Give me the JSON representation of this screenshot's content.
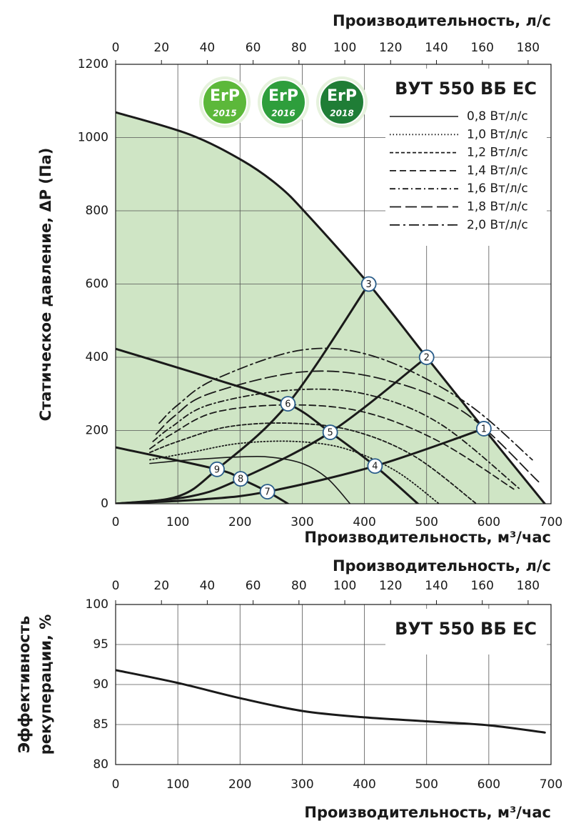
{
  "chart_data": [
    {
      "type": "line",
      "title": "ВУТ 550 ВБ ЕС",
      "xlabel": "Производительность, м³/час",
      "x2label": "Производительность, л/с",
      "ylabel": [
        "Статическое давление, ΔP (Па)"
      ],
      "xlim": [
        0,
        700
      ],
      "xticks": [
        0,
        100,
        200,
        300,
        400,
        500,
        600,
        700
      ],
      "x2lim": [
        0,
        190
      ],
      "x2ticks": [
        0,
        20,
        40,
        60,
        80,
        100,
        120,
        140,
        160,
        180
      ],
      "ylim": [
        0,
        1200
      ],
      "yticks": [
        0,
        200,
        400,
        600,
        800,
        1000,
        1200
      ],
      "grid": true,
      "badges": [
        {
          "label": "ErP",
          "year": "2015",
          "color": "#5cb83a"
        },
        {
          "label": "ErP",
          "year": "2016",
          "color": "#2e9e3c"
        },
        {
          "label": "ErP",
          "year": "2018",
          "color": "#1f7d36"
        }
      ],
      "series": [
        {
          "color": "#1a1a1a",
          "width": 3,
          "fill": "#cfe5c5",
          "x": [
            0,
            118,
            204,
            262,
            308,
            407,
            500,
            592,
            690
          ],
          "values": [
            1069,
            1009,
            937,
            868,
            790,
            600,
            400,
            205,
            0
          ]
        },
        {
          "color": "#1a1a1a",
          "width": 3,
          "x": [
            0,
            158,
            277,
            345,
            417,
            486
          ],
          "values": [
            423,
            341,
            273,
            195,
            103,
            0
          ]
        },
        {
          "color": "#1a1a1a",
          "width": 3,
          "x": [
            0,
            163,
            201,
            244,
            277
          ],
          "values": [
            154,
            94,
            68,
            33,
            0
          ]
        },
        {
          "color": "#1a1a1a",
          "width": 3,
          "x": [
            0,
            100,
            163,
            277,
            407
          ],
          "values": [
            0,
            20,
            94,
            273,
            600
          ]
        },
        {
          "color": "#1a1a1a",
          "width": 3,
          "x": [
            0,
            120,
            201,
            345,
            500
          ],
          "values": [
            0,
            20,
            68,
            195,
            400
          ]
        },
        {
          "color": "#1a1a1a",
          "width": 3,
          "x": [
            0,
            140,
            244,
            417,
            592
          ],
          "values": [
            0,
            12,
            33,
            103,
            205
          ]
        },
        {
          "name": "0,8 Вт/л/с",
          "color": "#1a1a1a",
          "width": 1.6,
          "dash": "none",
          "x": [
            55,
            120,
            200,
            250,
            300,
            340,
            377
          ],
          "values": [
            110,
            120,
            128,
            127,
            110,
            70,
            0
          ]
        },
        {
          "name": "1,0 Вт/л/с",
          "color": "#1a1a1a",
          "width": 1.8,
          "dash": "1.5,3",
          "x": [
            55,
            120,
            200,
            290,
            370,
            450,
            520
          ],
          "values": [
            120,
            140,
            165,
            170,
            150,
            90,
            0
          ]
        },
        {
          "name": "1,2 Вт/л/с",
          "color": "#1a1a1a",
          "width": 1.8,
          "dash": "5,3",
          "x": [
            55,
            100,
            180,
            280,
            380,
            480,
            580
          ],
          "values": [
            140,
            170,
            210,
            220,
            200,
            130,
            0
          ]
        },
        {
          "name": "1,4 Вт/л/с",
          "color": "#1a1a1a",
          "width": 1.8,
          "dash": "9,5",
          "x": [
            55,
            90,
            160,
            280,
            400,
            520,
            640
          ],
          "values": [
            150,
            190,
            250,
            270,
            250,
            170,
            40
          ]
        },
        {
          "name": "1,6 Вт/л/с",
          "color": "#1a1a1a",
          "width": 1.8,
          "dash": "8,4,2,4",
          "x": [
            60,
            90,
            150,
            280,
            400,
            520,
            650
          ],
          "values": [
            170,
            210,
            270,
            310,
            300,
            220,
            40
          ]
        },
        {
          "name": "1,8 Вт/л/с",
          "color": "#1a1a1a",
          "width": 1.8,
          "dash": "16,6",
          "x": [
            65,
            95,
            150,
            300,
            430,
            560,
            680
          ],
          "values": [
            190,
            240,
            300,
            360,
            340,
            250,
            60
          ]
        },
        {
          "name": "2,0 Вт/л/с",
          "color": "#1a1a1a",
          "width": 1.8,
          "dash": "14,5,3,5",
          "x": [
            70,
            100,
            160,
            300,
            420,
            560,
            670
          ],
          "values": [
            220,
            270,
            340,
            420,
            400,
            280,
            120
          ]
        }
      ],
      "points": [
        {
          "label": "1",
          "x": 592,
          "y": 205
        },
        {
          "label": "2",
          "x": 500,
          "y": 400
        },
        {
          "label": "3",
          "x": 407,
          "y": 600
        },
        {
          "label": "4",
          "x": 417,
          "y": 103
        },
        {
          "label": "5",
          "x": 345,
          "y": 195
        },
        {
          "label": "6",
          "x": 277,
          "y": 273
        },
        {
          "label": "7",
          "x": 244,
          "y": 33
        },
        {
          "label": "8",
          "x": 201,
          "y": 68
        },
        {
          "label": "9",
          "x": 163,
          "y": 94
        }
      ]
    },
    {
      "type": "line",
      "title": "ВУТ 550 ВБ ЕС",
      "xlabel": "Производительность, м³/час",
      "x2label": "Производительность, л/с",
      "ylabel": [
        "Эффективность",
        "рекуперации, %"
      ],
      "xlim": [
        0,
        700
      ],
      "xticks": [
        0,
        100,
        200,
        300,
        400,
        500,
        600,
        700
      ],
      "x2lim": [
        0,
        190
      ],
      "x2ticks": [
        0,
        20,
        40,
        60,
        80,
        100,
        120,
        140,
        160,
        180
      ],
      "ylim": [
        80,
        100
      ],
      "yticks": [
        80,
        85,
        90,
        95,
        100
      ],
      "grid": true,
      "series": [
        {
          "color": "#1a1a1a",
          "width": 3,
          "x": [
            0,
            100,
            200,
            300,
            400,
            500,
            600,
            690
          ],
          "values": [
            91.8,
            90.2,
            88.3,
            86.7,
            85.9,
            85.4,
            84.9,
            84.0
          ]
        }
      ]
    }
  ]
}
